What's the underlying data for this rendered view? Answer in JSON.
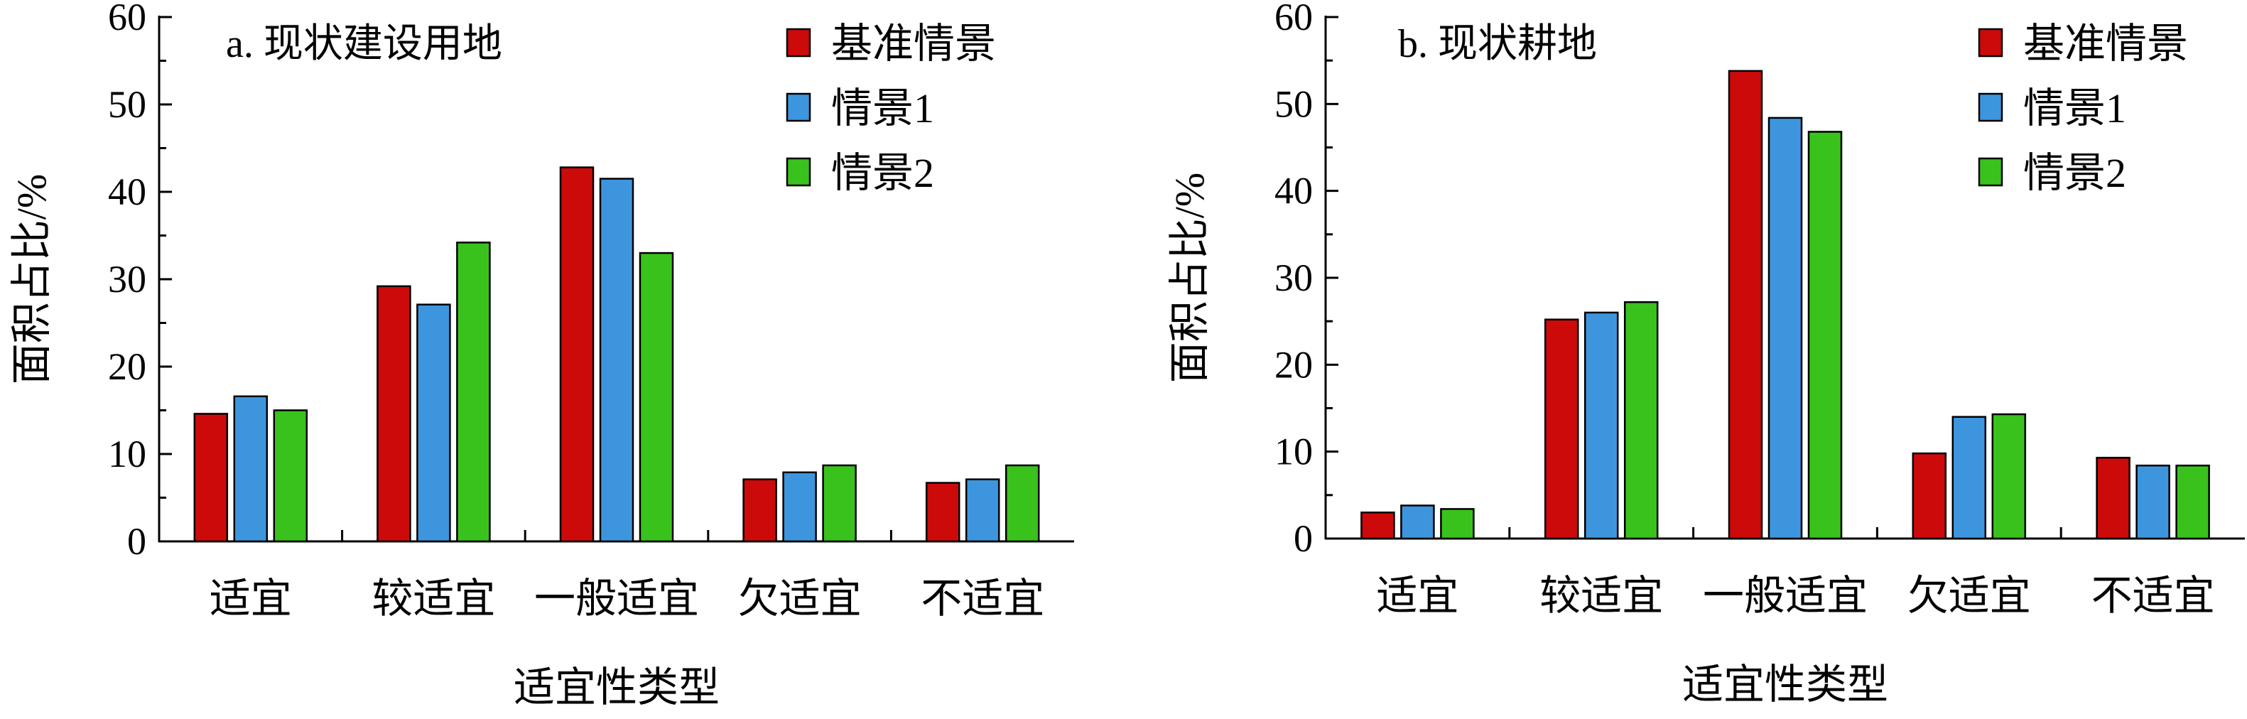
{
  "chart_data": [
    {
      "type": "bar",
      "title": "a. 现状建设用地",
      "xlabel": "适宜性类型",
      "ylabel": "面积占比/%",
      "ylim": [
        0,
        60
      ],
      "yticks": [
        0,
        10,
        20,
        30,
        40,
        50,
        60
      ],
      "categories": [
        "适宜",
        "较适宜",
        "一般适宜",
        "欠适宜",
        "不适宜"
      ],
      "series": [
        {
          "name": "基准情景",
          "color": "#cc0a0a",
          "values": [
            14.6,
            29.2,
            42.8,
            7.1,
            6.7
          ]
        },
        {
          "name": "情景1",
          "color": "#3d96dd",
          "values": [
            16.6,
            27.1,
            41.5,
            7.9,
            7.1
          ]
        },
        {
          "name": "情景2",
          "color": "#39c21c",
          "values": [
            15.0,
            34.2,
            33.0,
            8.7,
            8.7
          ]
        }
      ],
      "legend_position": "top-right",
      "grid": false
    },
    {
      "type": "bar",
      "title": "b. 现状耕地",
      "xlabel": "适宜性类型",
      "ylabel": "面积占比/%",
      "ylim": [
        0,
        60
      ],
      "yticks": [
        0,
        10,
        20,
        30,
        40,
        50,
        60
      ],
      "categories": [
        "适宜",
        "较适宜",
        "一般适宜",
        "欠适宜",
        "不适宜"
      ],
      "series": [
        {
          "name": "基准情景",
          "color": "#cc0a0a",
          "values": [
            3.0,
            25.2,
            53.8,
            9.8,
            9.3
          ]
        },
        {
          "name": "情景1",
          "color": "#3d96dd",
          "values": [
            3.8,
            26.0,
            48.4,
            14.0,
            8.4
          ]
        },
        {
          "name": "情景2",
          "color": "#39c21c",
          "values": [
            3.4,
            27.2,
            46.8,
            14.3,
            8.4
          ]
        }
      ],
      "legend_position": "top-right",
      "grid": false
    }
  ]
}
